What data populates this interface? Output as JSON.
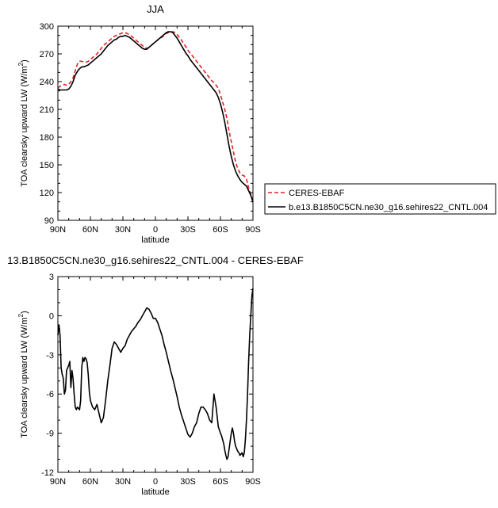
{
  "chart_data": [
    {
      "type": "line",
      "title": "JJA",
      "xlabel": "latitude",
      "ylabel_main": "TOA clearsky upward LW (W/m",
      "ylabel_sup": "2",
      "ylabel_close": ")",
      "xlim": [
        90,
        -90
      ],
      "ylim": [
        90,
        300
      ],
      "xticks": [
        90,
        60,
        30,
        0,
        -30,
        -60,
        -90
      ],
      "xtick_labels": [
        "90N",
        "60N",
        "30N",
        "0",
        "30S",
        "60S",
        "90S"
      ],
      "yticks": [
        90,
        120,
        150,
        180,
        210,
        240,
        270,
        300
      ],
      "ytick_labels": [
        "90",
        "120",
        "150",
        "180",
        "210",
        "240",
        "270",
        "300"
      ],
      "legend_position": "right",
      "series": [
        {
          "name": "CERES-EBAF",
          "color": "#e0242b",
          "dash": true,
          "x": [
            90,
            88,
            86,
            84,
            82,
            80,
            78,
            76,
            74,
            72,
            70,
            68,
            66,
            64,
            62,
            60,
            58,
            56,
            54,
            52,
            50,
            48,
            46,
            44,
            42,
            40,
            38,
            36,
            34,
            32,
            30,
            28,
            26,
            24,
            22,
            20,
            18,
            16,
            14,
            12,
            10,
            8,
            6,
            4,
            2,
            0,
            -2,
            -4,
            -6,
            -8,
            -10,
            -12,
            -14,
            -16,
            -18,
            -20,
            -22,
            -24,
            -26,
            -28,
            -30,
            -32,
            -34,
            -36,
            -38,
            -40,
            -42,
            -44,
            -46,
            -48,
            -50,
            -52,
            -54,
            -56,
            -58,
            -60,
            -62,
            -64,
            -66,
            -68,
            -70,
            -72,
            -74,
            -76,
            -78,
            -80,
            -82,
            -84,
            -86,
            -88,
            -90
          ],
          "y": [
            233,
            235,
            236,
            237,
            236,
            237,
            240,
            244,
            252,
            259,
            262,
            262,
            261,
            261,
            262,
            264,
            266,
            268,
            270,
            273,
            276,
            279,
            281,
            283,
            285,
            287,
            289,
            290,
            291,
            292,
            293,
            293,
            292,
            291,
            289,
            287,
            285,
            283,
            281,
            279,
            277,
            276,
            277,
            279,
            281,
            283,
            285,
            287,
            288,
            290,
            292,
            293,
            294,
            294,
            293,
            291,
            288,
            285,
            281,
            278,
            274,
            271,
            268,
            265,
            262,
            259,
            256,
            253,
            250,
            247,
            244,
            241,
            239,
            236,
            233,
            226,
            218,
            210,
            200,
            186,
            175,
            164,
            153,
            146,
            141,
            139,
            138,
            135,
            125,
            118,
            110
          ]
        },
        {
          "name": "b.e13.B1850C5CN.ne30_g16.sehires22_CNTL.004",
          "color": "#000000",
          "dash": false,
          "x": [
            90,
            88,
            86,
            84,
            82,
            80,
            78,
            76,
            74,
            72,
            70,
            68,
            66,
            64,
            62,
            60,
            58,
            56,
            54,
            52,
            50,
            48,
            46,
            44,
            42,
            40,
            38,
            36,
            34,
            32,
            30,
            28,
            26,
            24,
            22,
            20,
            18,
            16,
            14,
            12,
            10,
            8,
            6,
            4,
            2,
            0,
            -2,
            -4,
            -6,
            -8,
            -10,
            -12,
            -14,
            -16,
            -18,
            -20,
            -22,
            -24,
            -26,
            -28,
            -30,
            -32,
            -34,
            -36,
            -38,
            -40,
            -42,
            -44,
            -46,
            -48,
            -50,
            -52,
            -54,
            -56,
            -58,
            -60,
            -62,
            -64,
            -66,
            -68,
            -70,
            -72,
            -74,
            -76,
            -78,
            -80,
            -82,
            -84,
            -86,
            -88,
            -90
          ],
          "y": [
            232,
            231,
            231,
            231,
            231,
            232,
            235,
            240,
            247,
            251,
            254,
            256,
            256,
            257,
            258,
            260,
            262,
            264,
            266,
            268,
            270,
            273,
            276,
            279,
            281,
            283,
            285,
            286,
            288,
            289,
            289,
            290,
            289,
            288,
            286,
            284,
            282,
            280,
            278,
            276,
            275,
            275,
            277,
            279,
            281,
            283,
            285,
            287,
            289,
            291,
            293,
            294,
            294,
            293,
            290,
            287,
            283,
            279,
            275,
            271,
            268,
            264,
            261,
            258,
            255,
            252,
            249,
            246,
            243,
            240,
            237,
            234,
            231,
            228,
            223,
            216,
            207,
            196,
            183,
            170,
            159,
            150,
            143,
            138,
            134,
            131,
            129,
            127,
            122,
            117,
            110
          ]
        }
      ]
    },
    {
      "type": "line",
      "title": "13.B1850C5CN.ne30_g16.sehires22_CNTL.004 - CERES-EBAF",
      "xlabel": "latitude",
      "ylabel_main": "TOA clearsky upward LW (W/m",
      "ylabel_sup": "2",
      "ylabel_close": ")",
      "xlim": [
        90,
        -90
      ],
      "ylim": [
        -12,
        3
      ],
      "xticks": [
        90,
        60,
        30,
        0,
        -30,
        -60,
        -90
      ],
      "xtick_labels": [
        "90N",
        "60N",
        "30N",
        "0",
        "30S",
        "60S",
        "90S"
      ],
      "yticks": [
        -12,
        -9,
        -6,
        -3,
        0,
        3
      ],
      "ytick_labels": [
        "-12",
        "-9",
        "-6",
        "-3",
        "0",
        "3"
      ],
      "series": [
        {
          "color": "#000000",
          "dash": false,
          "x": [
            90,
            89,
            88,
            87,
            86,
            85,
            84,
            83,
            82,
            81,
            80,
            79,
            78,
            77,
            76,
            75,
            74,
            73,
            72,
            71,
            70,
            69,
            68,
            67,
            66,
            65,
            64,
            63,
            62,
            61,
            60,
            58,
            56,
            54,
            52,
            50,
            48,
            46,
            44,
            42,
            40,
            38,
            36,
            34,
            32,
            30,
            28,
            26,
            24,
            22,
            20,
            18,
            16,
            14,
            12,
            10,
            8,
            6,
            4,
            2,
            0,
            -2,
            -4,
            -6,
            -8,
            -10,
            -12,
            -14,
            -16,
            -18,
            -20,
            -22,
            -24,
            -26,
            -28,
            -30,
            -32,
            -34,
            -36,
            -38,
            -40,
            -42,
            -44,
            -46,
            -48,
            -50,
            -52,
            -54,
            -56,
            -58,
            -60,
            -61,
            -62,
            -63,
            -64,
            -65,
            -66,
            -67,
            -68,
            -69,
            -70,
            -71,
            -72,
            -73,
            -74,
            -75,
            -76,
            -77,
            -78,
            -79,
            -80,
            -81,
            -82,
            -83,
            -84,
            -85,
            -86,
            -87,
            -88,
            -89,
            -90
          ],
          "y": [
            -1.5,
            -0.7,
            -1.5,
            -4.0,
            -4.5,
            -4.8,
            -6.0,
            -5.7,
            -4.2,
            -4.0,
            -3.8,
            -3.5,
            -5.5,
            -4.2,
            -4.8,
            -6.0,
            -7.0,
            -7.2,
            -7.0,
            -7.1,
            -7.2,
            -6.5,
            -4.0,
            -3.2,
            -3.5,
            -3.2,
            -3.3,
            -3.6,
            -4.5,
            -5.8,
            -6.5,
            -7.0,
            -7.2,
            -6.8,
            -7.5,
            -8.2,
            -7.8,
            -6.5,
            -5.0,
            -3.8,
            -2.5,
            -2.0,
            -2.2,
            -2.5,
            -2.8,
            -2.5,
            -2.3,
            -1.8,
            -1.5,
            -1.2,
            -1.0,
            -0.8,
            -0.5,
            -0.3,
            0.0,
            0.3,
            0.6,
            0.5,
            0.2,
            -0.2,
            -0.2,
            -0.5,
            -1.0,
            -1.5,
            -2.2,
            -2.8,
            -3.5,
            -4.2,
            -4.8,
            -5.5,
            -6.2,
            -7.0,
            -7.6,
            -8.1,
            -8.6,
            -9.1,
            -9.3,
            -9.0,
            -8.5,
            -8.2,
            -7.5,
            -7.0,
            -7.0,
            -7.2,
            -7.5,
            -8.0,
            -8.2,
            -6.0,
            -7.0,
            -8.5,
            -9.0,
            -9.2,
            -9.5,
            -9.8,
            -10.3,
            -10.7,
            -11.0,
            -10.8,
            -10.2,
            -9.6,
            -9.0,
            -8.6,
            -9.0,
            -9.6,
            -10.0,
            -10.2,
            -10.4,
            -10.5,
            -10.7,
            -10.6,
            -10.5,
            -10.8,
            -10.5,
            -9.5,
            -8.0,
            -6.0,
            -3.5,
            -1.5,
            0.0,
            1.5,
            2.1
          ]
        }
      ]
    }
  ]
}
